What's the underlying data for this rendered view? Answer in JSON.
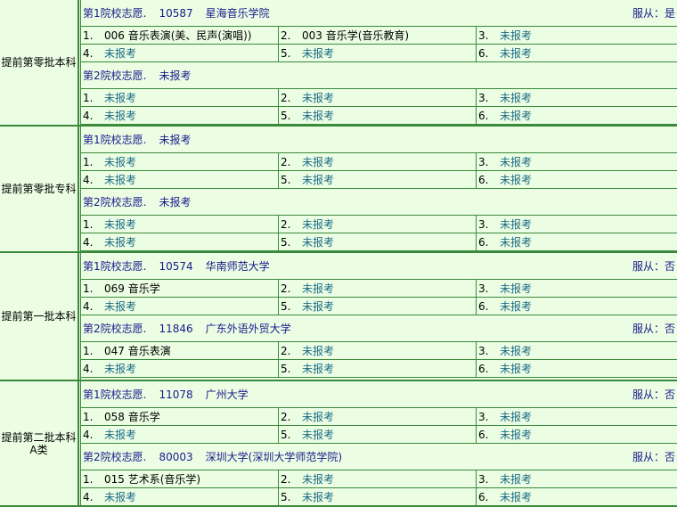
{
  "colors": {
    "background": "#ebfde3",
    "border": "#3b8a3b",
    "heading": "#1a1a8c",
    "not_applied": "#1b6a86"
  },
  "obey_label": "服从：",
  "sections": [
    {
      "label": "提前第零批本科",
      "choices": [
        {
          "title": "第1院校志愿.",
          "code": "10587",
          "school": "星海音乐学院",
          "obey": "是",
          "majors": [
            "006 音乐表演(美、民声(演唱))",
            "003 音乐学(音乐教育)",
            "未报考",
            "未报考",
            "未报考",
            "未报考"
          ]
        },
        {
          "title": "第2院校志愿.",
          "code": "",
          "school": "未报考",
          "obey": "",
          "majors": [
            "未报考",
            "未报考",
            "未报考",
            "未报考",
            "未报考",
            "未报考"
          ]
        }
      ]
    },
    {
      "label": "提前第零批专科",
      "choices": [
        {
          "title": "第1院校志愿.",
          "code": "",
          "school": "未报考",
          "obey": "",
          "majors": [
            "未报考",
            "未报考",
            "未报考",
            "未报考",
            "未报考",
            "未报考"
          ]
        },
        {
          "title": "第2院校志愿.",
          "code": "",
          "school": "未报考",
          "obey": "",
          "majors": [
            "未报考",
            "未报考",
            "未报考",
            "未报考",
            "未报考",
            "未报考"
          ]
        }
      ]
    },
    {
      "label": "提前第一批本科",
      "choices": [
        {
          "title": "第1院校志愿.",
          "code": "10574",
          "school": "华南师范大学",
          "obey": "否",
          "majors": [
            "069 音乐学",
            "未报考",
            "未报考",
            "未报考",
            "未报考",
            "未报考"
          ]
        },
        {
          "title": "第2院校志愿.",
          "code": "11846",
          "school": "广东外语外贸大学",
          "obey": "否",
          "majors": [
            "047 音乐表演",
            "未报考",
            "未报考",
            "未报考",
            "未报考",
            "未报考"
          ]
        }
      ]
    },
    {
      "label": "提前第二批本科A类",
      "choices": [
        {
          "title": "第1院校志愿.",
          "code": "11078",
          "school": "广州大学",
          "obey": "否",
          "majors": [
            "058 音乐学",
            "未报考",
            "未报考",
            "未报考",
            "未报考",
            "未报考"
          ]
        },
        {
          "title": "第2院校志愿.",
          "code": "80003",
          "school": "深圳大学(深圳大学师范学院)",
          "obey": "否",
          "majors": [
            "015 艺术系(音乐学)",
            "未报考",
            "未报考",
            "未报考",
            "未报考",
            "未报考"
          ]
        }
      ]
    }
  ]
}
